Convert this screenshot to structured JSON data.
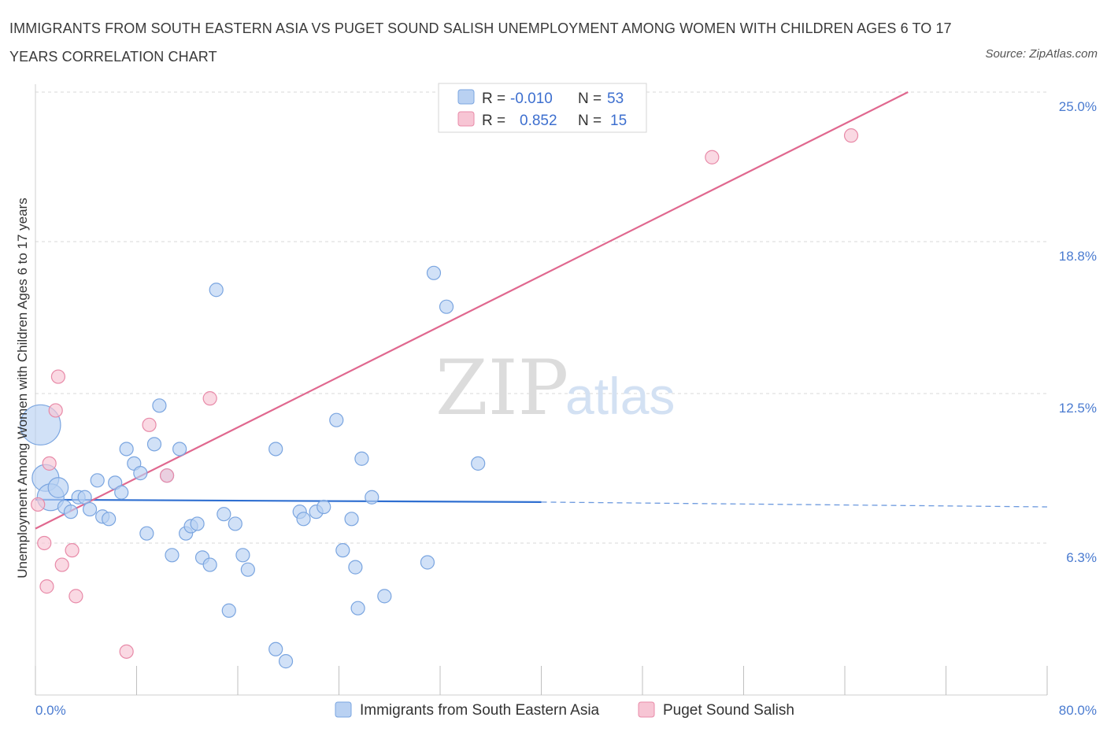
{
  "title": "IMMIGRANTS FROM SOUTH EASTERN ASIA VS PUGET SOUND SALISH UNEMPLOYMENT AMONG WOMEN WITH CHILDREN AGES 6 TO 17 YEARS CORRELATION CHART",
  "source": "Source: ZipAtlas.com",
  "watermark": {
    "zip": "ZIP",
    "atlas": "atlas"
  },
  "colors": {
    "blue_fill": "#b9d1f2",
    "blue_stroke": "#7aa5e0",
    "blue_line": "#2f6fd1",
    "pink_fill": "#f7c5d4",
    "pink_stroke": "#e88aa8",
    "pink_line": "#e0688f",
    "grid": "#d9d9d9",
    "tick_label": "#4a7bd0"
  },
  "legend": {
    "rows": [
      {
        "r_label": "R =",
        "r_value": "-0.010",
        "n_label": "N =",
        "n_value": "53"
      },
      {
        "r_label": "R =",
        "r_value": "0.852",
        "n_label": "N =",
        "n_value": "15"
      }
    ]
  },
  "chart_data": {
    "type": "scatter",
    "title": "IMMIGRANTS FROM SOUTH EASTERN ASIA VS PUGET SOUND SALISH UNEMPLOYMENT AMONG WOMEN WITH CHILDREN AGES 6 TO 17 YEARS CORRELATION CHART",
    "ylabel": "Unemployment Among Women with Children Ages 6 to 17 years",
    "xlabel": "",
    "xlim": [
      0,
      80
    ],
    "ylim": [
      0,
      25
    ],
    "x_tick_labels": [
      {
        "value": 0,
        "label": "0.0%"
      },
      {
        "value": 80,
        "label": "80.0%"
      }
    ],
    "y_tick_labels": [
      {
        "value": 6.3,
        "label": "6.3%"
      },
      {
        "value": 12.5,
        "label": "12.5%"
      },
      {
        "value": 18.8,
        "label": "18.8%"
      },
      {
        "value": 25.0,
        "label": "25.0%"
      }
    ],
    "series": [
      {
        "name": "Immigrants from South Eastern Asia",
        "r": -0.01,
        "n": 53,
        "trend": {
          "x0": 0,
          "y0": 8.1,
          "x1": 40,
          "y1": 8.0,
          "dash_to_x": 80,
          "dash_to_y": 7.8
        },
        "points": [
          {
            "x": 0.4,
            "y": 11.2,
            "s": 3
          },
          {
            "x": 0.8,
            "y": 9.0,
            "s": 2
          },
          {
            "x": 1.2,
            "y": 8.2,
            "s": 2
          },
          {
            "x": 1.8,
            "y": 8.6,
            "s": 1.5
          },
          {
            "x": 2.3,
            "y": 7.8,
            "s": 1
          },
          {
            "x": 2.8,
            "y": 7.6,
            "s": 1
          },
          {
            "x": 3.4,
            "y": 8.2,
            "s": 1
          },
          {
            "x": 3.9,
            "y": 8.2,
            "s": 1
          },
          {
            "x": 4.3,
            "y": 7.7,
            "s": 1
          },
          {
            "x": 4.9,
            "y": 8.9,
            "s": 1
          },
          {
            "x": 5.3,
            "y": 7.4,
            "s": 1
          },
          {
            "x": 5.8,
            "y": 7.3,
            "s": 1
          },
          {
            "x": 6.3,
            "y": 8.8,
            "s": 1
          },
          {
            "x": 6.8,
            "y": 8.4,
            "s": 1
          },
          {
            "x": 7.2,
            "y": 10.2,
            "s": 1
          },
          {
            "x": 7.8,
            "y": 9.6,
            "s": 1
          },
          {
            "x": 8.3,
            "y": 9.2,
            "s": 1
          },
          {
            "x": 8.8,
            "y": 6.7,
            "s": 1
          },
          {
            "x": 9.4,
            "y": 10.4,
            "s": 1
          },
          {
            "x": 9.8,
            "y": 12.0,
            "s": 1
          },
          {
            "x": 10.4,
            "y": 9.1,
            "s": 1
          },
          {
            "x": 10.8,
            "y": 5.8,
            "s": 1
          },
          {
            "x": 11.4,
            "y": 10.2,
            "s": 1
          },
          {
            "x": 11.9,
            "y": 6.7,
            "s": 1
          },
          {
            "x": 12.3,
            "y": 7.0,
            "s": 1
          },
          {
            "x": 12.8,
            "y": 7.1,
            "s": 1
          },
          {
            "x": 13.2,
            "y": 5.7,
            "s": 1
          },
          {
            "x": 13.8,
            "y": 5.4,
            "s": 1
          },
          {
            "x": 14.3,
            "y": 16.8,
            "s": 1
          },
          {
            "x": 14.9,
            "y": 7.5,
            "s": 1
          },
          {
            "x": 15.3,
            "y": 3.5,
            "s": 1
          },
          {
            "x": 15.8,
            "y": 7.1,
            "s": 1
          },
          {
            "x": 16.4,
            "y": 5.8,
            "s": 1
          },
          {
            "x": 16.8,
            "y": 5.2,
            "s": 1
          },
          {
            "x": 19.0,
            "y": 10.2,
            "s": 1
          },
          {
            "x": 19.0,
            "y": 1.9,
            "s": 1
          },
          {
            "x": 19.8,
            "y": 1.4,
            "s": 1
          },
          {
            "x": 20.9,
            "y": 7.6,
            "s": 1
          },
          {
            "x": 21.2,
            "y": 7.3,
            "s": 1
          },
          {
            "x": 22.2,
            "y": 7.6,
            "s": 1
          },
          {
            "x": 22.8,
            "y": 7.8,
            "s": 1
          },
          {
            "x": 23.8,
            "y": 11.4,
            "s": 1
          },
          {
            "x": 24.3,
            "y": 6.0,
            "s": 1
          },
          {
            "x": 25.0,
            "y": 7.3,
            "s": 1
          },
          {
            "x": 25.8,
            "y": 9.8,
            "s": 1
          },
          {
            "x": 25.5,
            "y": 3.6,
            "s": 1
          },
          {
            "x": 26.6,
            "y": 8.2,
            "s": 1
          },
          {
            "x": 25.3,
            "y": 5.3,
            "s": 1
          },
          {
            "x": 27.6,
            "y": 4.1,
            "s": 1
          },
          {
            "x": 31.0,
            "y": 5.5,
            "s": 1
          },
          {
            "x": 31.5,
            "y": 17.5,
            "s": 1
          },
          {
            "x": 32.5,
            "y": 16.1,
            "s": 1
          },
          {
            "x": 35.0,
            "y": 9.6,
            "s": 1
          }
        ]
      },
      {
        "name": "Puget Sound Salish",
        "r": 0.852,
        "n": 15,
        "trend": {
          "x0": 0,
          "y0": 6.9,
          "x1": 69,
          "y1": 25.0
        },
        "points": [
          {
            "x": 0.2,
            "y": 7.9,
            "s": 1
          },
          {
            "x": 0.7,
            "y": 6.3,
            "s": 1
          },
          {
            "x": 0.9,
            "y": 4.5,
            "s": 1
          },
          {
            "x": 1.1,
            "y": 9.6,
            "s": 1
          },
          {
            "x": 1.6,
            "y": 11.8,
            "s": 1
          },
          {
            "x": 1.8,
            "y": 13.2,
            "s": 1
          },
          {
            "x": 2.1,
            "y": 5.4,
            "s": 1
          },
          {
            "x": 2.9,
            "y": 6.0,
            "s": 1
          },
          {
            "x": 3.2,
            "y": 4.1,
            "s": 1
          },
          {
            "x": 7.2,
            "y": 1.8,
            "s": 1
          },
          {
            "x": 9.0,
            "y": 11.2,
            "s": 1
          },
          {
            "x": 10.4,
            "y": 9.1,
            "s": 1
          },
          {
            "x": 13.8,
            "y": 12.3,
            "s": 1
          },
          {
            "x": 53.5,
            "y": 22.3,
            "s": 1
          },
          {
            "x": 64.5,
            "y": 23.2,
            "s": 1
          }
        ]
      }
    ]
  }
}
